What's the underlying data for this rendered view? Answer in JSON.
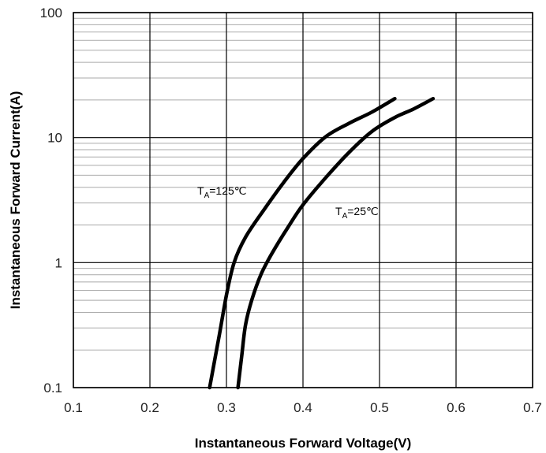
{
  "chart_data": {
    "type": "line",
    "title": "",
    "xlabel": "Instantaneous Forward Voltage(V)",
    "ylabel": "Instantaneous Forward Current(A)",
    "xlim": [
      0.1,
      0.7
    ],
    "ylim": [
      0.1,
      100
    ],
    "y_scale": "log",
    "x_ticks": [
      "0.1",
      "0.2",
      "0.3",
      "0.4",
      "0.5",
      "0.6",
      "0.7"
    ],
    "y_ticks": [
      "0.1",
      "1",
      "10",
      "100"
    ],
    "grid": true,
    "minor_grid_y": true,
    "series": [
      {
        "name": "",
        "label_main": "T",
        "label_sub": "A",
        "label_rest": "=125℃",
        "color": "#000000",
        "x": [
          0.278,
          0.29,
          0.3,
          0.31,
          0.325,
          0.35,
          0.375,
          0.4,
          0.43,
          0.46,
          0.49,
          0.52
        ],
        "y": [
          0.1,
          0.25,
          0.55,
          1.0,
          1.6,
          2.7,
          4.4,
          6.8,
          10.2,
          13.0,
          16.0,
          20.5
        ]
      },
      {
        "name": "",
        "label_main": "T",
        "label_sub": "A",
        "label_rest": "=25℃",
        "color": "#000000",
        "x": [
          0.315,
          0.32,
          0.325,
          0.333,
          0.345,
          0.36,
          0.38,
          0.4,
          0.43,
          0.46,
          0.49,
          0.52,
          0.545,
          0.57
        ],
        "y": [
          0.1,
          0.18,
          0.32,
          0.5,
          0.8,
          1.2,
          1.9,
          2.9,
          4.8,
          7.6,
          11.2,
          14.5,
          17.0,
          20.5
        ]
      }
    ]
  }
}
